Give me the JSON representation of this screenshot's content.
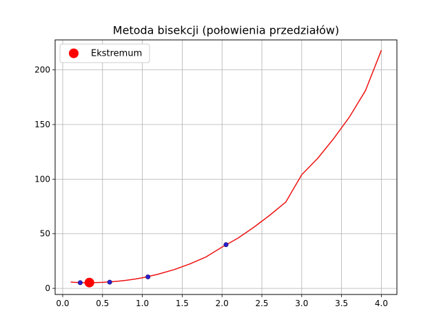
{
  "chart_data": {
    "type": "line",
    "title": "Metoda bisekcji (połowienia przedziałów)",
    "xlabel": "",
    "ylabel": "",
    "xlim": [
      -0.095,
      4.195
    ],
    "ylim": [
      -5.6,
      227.5
    ],
    "x_ticks": [
      0.0,
      0.5,
      1.0,
      1.5,
      2.0,
      2.5,
      3.0,
      3.5,
      4.0
    ],
    "x_tick_labels": [
      "0.0",
      "0.5",
      "1.0",
      "1.5",
      "2.0",
      "2.5",
      "3.0",
      "3.5",
      "4.0"
    ],
    "y_ticks": [
      0,
      50,
      100,
      150,
      200
    ],
    "y_tick_labels": [
      "0",
      "50",
      "100",
      "150",
      "200"
    ],
    "grid": true,
    "legend_position": "upper-left",
    "curve": {
      "color": "#ee1111",
      "x": [
        0.1,
        0.2,
        0.3,
        0.4,
        0.5,
        0.6,
        0.7,
        0.8,
        0.9,
        1.0,
        1.2,
        1.4,
        1.6,
        1.8,
        2.0,
        2.2,
        2.4,
        2.6,
        2.8,
        3.0,
        3.2,
        3.4,
        3.6,
        3.8,
        4.0
      ],
      "y": [
        5.7,
        5.3,
        5.2,
        5.3,
        5.5,
        6.0,
        6.6,
        7.4,
        8.4,
        9.7,
        13.0,
        17.2,
        22.5,
        28.8,
        37.8,
        46.0,
        56.0,
        67.0,
        79.0,
        104.0,
        119.0,
        137.0,
        157.0,
        181.0,
        218.0
      ]
    },
    "iteration_points": {
      "color": "#2b1fd0",
      "x": [
        0.22,
        0.59,
        1.07,
        2.05
      ],
      "y": [
        5.2,
        5.7,
        10.5,
        40.0
      ]
    },
    "extremum": {
      "label": "Ekstremum",
      "color": "#ff0000",
      "x": 0.335,
      "y": 5.3
    }
  }
}
